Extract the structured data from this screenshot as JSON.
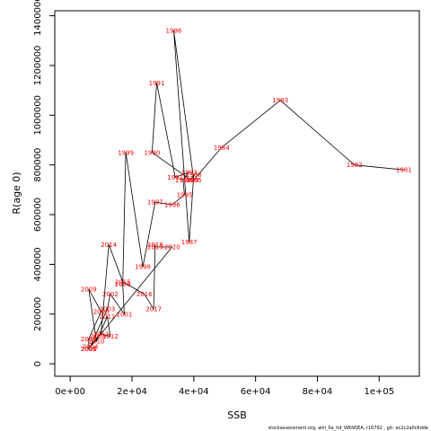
{
  "chart_data": {
    "type": "line",
    "title": "",
    "xlabel": "SSB",
    "ylabel": "R(age 0)",
    "xlim": [
      -5000,
      113000
    ],
    "ylim": [
      -50000,
      1420000
    ],
    "x_ticks": [
      {
        "value": 0,
        "label": "0e+00"
      },
      {
        "value": 20000,
        "label": "2e+04"
      },
      {
        "value": 40000,
        "label": "4e+04"
      },
      {
        "value": 60000,
        "label": "6e+04"
      },
      {
        "value": 80000,
        "label": "8e+04"
      },
      {
        "value": 100000,
        "label": "1e+05"
      }
    ],
    "y_ticks": [
      {
        "value": 0,
        "label": "0"
      },
      {
        "value": 200000,
        "label": "200000"
      },
      {
        "value": 400000,
        "label": "400000"
      },
      {
        "value": 600000,
        "label": "600000"
      },
      {
        "value": 800000,
        "label": "800000"
      },
      {
        "value": 1000000,
        "label": "1000000"
      },
      {
        "value": 1200000,
        "label": "1200000"
      },
      {
        "value": 1400000,
        "label": "1400000"
      }
    ],
    "line_color": "#000000",
    "label_color": "#ff0000",
    "grid": false,
    "points": [
      {
        "year": "1981",
        "x": 108000,
        "y": 780000
      },
      {
        "year": "1982",
        "x": 92000,
        "y": 800000
      },
      {
        "year": "1983",
        "x": 68000,
        "y": 1060000
      },
      {
        "year": "1984",
        "x": 49000,
        "y": 870000
      },
      {
        "year": "1985",
        "x": 40000,
        "y": 740000
      },
      {
        "year": "1986",
        "x": 33500,
        "y": 1340000
      },
      {
        "year": "1987",
        "x": 38500,
        "y": 490000
      },
      {
        "year": "1988",
        "x": 40000,
        "y": 760000
      },
      {
        "year": "1989",
        "x": 39000,
        "y": 740000
      },
      {
        "year": "1990",
        "x": 26500,
        "y": 850000
      },
      {
        "year": "1991",
        "x": 28000,
        "y": 1130000
      },
      {
        "year": "1992",
        "x": 34000,
        "y": 750000
      },
      {
        "year": "1993",
        "x": 38500,
        "y": 770000
      },
      {
        "year": "1994",
        "x": 36500,
        "y": 740000
      },
      {
        "year": "1995",
        "x": 37000,
        "y": 680000
      },
      {
        "year": "1996",
        "x": 33000,
        "y": 640000
      },
      {
        "year": "1997",
        "x": 27500,
        "y": 650000
      },
      {
        "year": "1998",
        "x": 23500,
        "y": 390000
      },
      {
        "year": "1999",
        "x": 18000,
        "y": 850000
      },
      {
        "year": "2000",
        "x": 17000,
        "y": 320000
      },
      {
        "year": "2001",
        "x": 17500,
        "y": 200000
      },
      {
        "year": "2002",
        "x": 13000,
        "y": 280000
      },
      {
        "year": "2003",
        "x": 12000,
        "y": 220000
      },
      {
        "year": "2004",
        "x": 6500,
        "y": 70000
      },
      {
        "year": "2005",
        "x": 9000,
        "y": 110000
      },
      {
        "year": "2006",
        "x": 6000,
        "y": 60000
      },
      {
        "year": "2007",
        "x": 6000,
        "y": 100000
      },
      {
        "year": "2008",
        "x": 10000,
        "y": 210000
      },
      {
        "year": "2009",
        "x": 6000,
        "y": 300000
      },
      {
        "year": "2010",
        "x": 8500,
        "y": 90000
      },
      {
        "year": "2011",
        "x": 12000,
        "y": 190000
      },
      {
        "year": "2012",
        "x": 13000,
        "y": 110000
      },
      {
        "year": "2013",
        "x": 10000,
        "y": 120000
      },
      {
        "year": "2014",
        "x": 12500,
        "y": 480000
      },
      {
        "year": "2015",
        "x": 17000,
        "y": 330000
      },
      {
        "year": "2016",
        "x": 24000,
        "y": 280000
      },
      {
        "year": "2017",
        "x": 27000,
        "y": 220000
      },
      {
        "year": "2018",
        "x": 27500,
        "y": 480000
      },
      {
        "year": "2019",
        "x": 27500,
        "y": 470000
      },
      {
        "year": "2020",
        "x": 33000,
        "y": 470000
      },
      {
        "year": "2021",
        "x": 6000,
        "y": 60000
      }
    ]
  },
  "footer_text": "stockassessment.org, whi_6a_hd_WKNSEA, r16792 , git: ec2c2a0c6dde"
}
